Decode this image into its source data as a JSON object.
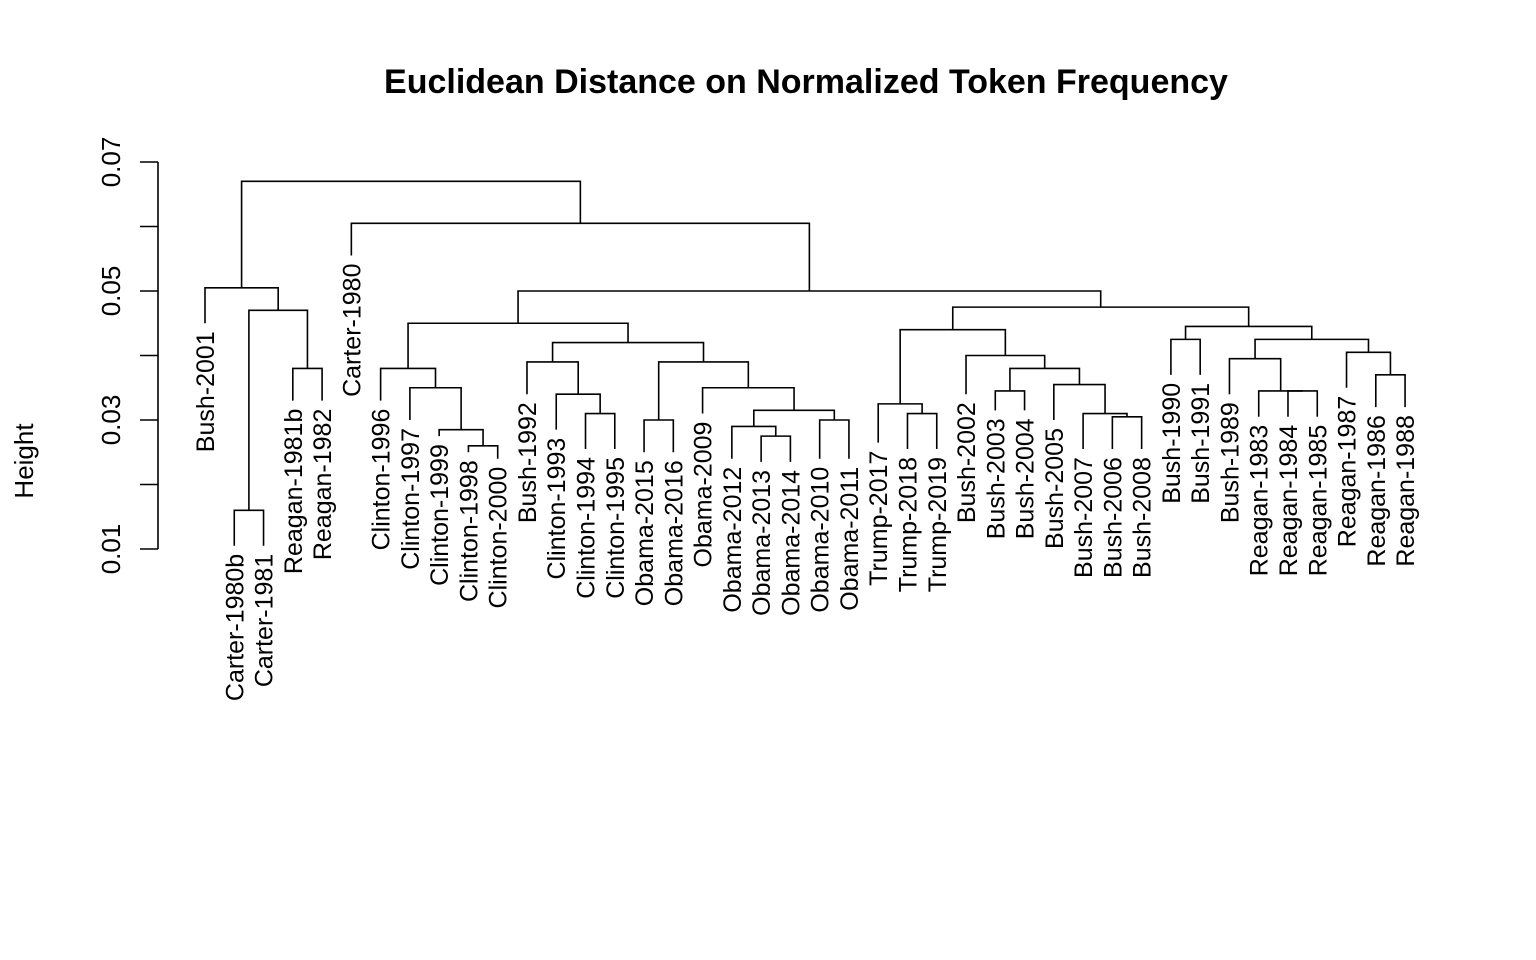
{
  "chart_data": {
    "type": "dendrogram",
    "title": "Euclidean Distance on Normalized Token Frequency",
    "xlabel": "",
    "ylabel": "Height",
    "ylim": [
      0.01,
      0.07
    ],
    "yticks": [
      0.01,
      0.03,
      0.05,
      0.07
    ],
    "ytick_labels": [
      "0.01",
      "0.03",
      "0.05",
      "0.07"
    ],
    "leaves": [
      "Bush-2001",
      "Carter-1980b",
      "Carter-1981",
      "Reagan-1981b",
      "Reagan-1982",
      "Carter-1980",
      "Clinton-1996",
      "Clinton-1997",
      "Clinton-1999",
      "Clinton-1998",
      "Clinton-2000",
      "Bush-1992",
      "Clinton-1993",
      "Clinton-1994",
      "Clinton-1995",
      "Obama-2015",
      "Obama-2016",
      "Obama-2009",
      "Obama-2012",
      "Obama-2013",
      "Obama-2014",
      "Obama-2010",
      "Obama-2011",
      "Trump-2017",
      "Trump-2018",
      "Trump-2019",
      "Bush-2002",
      "Bush-2003",
      "Bush-2004",
      "Bush-2005",
      "Bush-2007",
      "Bush-2006",
      "Bush-2008",
      "Bush-1990",
      "Bush-1991",
      "Bush-1989",
      "Reagan-1983",
      "Reagan-1984",
      "Reagan-1985",
      "Reagan-1987",
      "Reagan-1986",
      "Reagan-1988"
    ],
    "leaf_heights": [
      0.045,
      0.0105,
      0.0105,
      0.033,
      0.033,
      0.0555,
      0.033,
      0.03,
      0.0275,
      0.025,
      0.024,
      0.034,
      0.0285,
      0.0255,
      0.0255,
      0.025,
      0.025,
      0.031,
      0.024,
      0.0235,
      0.0235,
      0.024,
      0.024,
      0.0265,
      0.0255,
      0.0255,
      0.034,
      0.0315,
      0.0315,
      0.03,
      0.0255,
      0.0255,
      0.0255,
      0.037,
      0.037,
      0.034,
      0.0305,
      0.0305,
      0.0305,
      0.035,
      0.032,
      0.032
    ],
    "merges": [
      {
        "a": "L1",
        "b": "L2",
        "height": 0.016
      },
      {
        "a": "L3",
        "b": "L4",
        "height": 0.038
      },
      {
        "a": "M0",
        "b": "M1",
        "height": 0.047
      },
      {
        "a": "L0",
        "b": "M2",
        "height": 0.0505
      },
      {
        "a": "L9",
        "b": "L10",
        "height": 0.026
      },
      {
        "a": "L8",
        "b": "M4",
        "height": 0.0285
      },
      {
        "a": "L7",
        "b": "M5",
        "height": 0.035
      },
      {
        "a": "L6",
        "b": "M6",
        "height": 0.038
      },
      {
        "a": "L13",
        "b": "L14",
        "height": 0.031
      },
      {
        "a": "L12",
        "b": "M8",
        "height": 0.034
      },
      {
        "a": "L11",
        "b": "M9",
        "height": 0.039
      },
      {
        "a": "L15",
        "b": "L16",
        "height": 0.03
      },
      {
        "a": "L19",
        "b": "L20",
        "height": 0.0275
      },
      {
        "a": "L18",
        "b": "M12",
        "height": 0.029
      },
      {
        "a": "L21",
        "b": "L22",
        "height": 0.03
      },
      {
        "a": "M13",
        "b": "M14",
        "height": 0.0315
      },
      {
        "a": "L17",
        "b": "M15",
        "height": 0.035
      },
      {
        "a": "M11",
        "b": "M16",
        "height": 0.039
      },
      {
        "a": "M10",
        "b": "M17",
        "height": 0.042
      },
      {
        "a": "M7",
        "b": "M18",
        "height": 0.045
      },
      {
        "a": "L24",
        "b": "L25",
        "height": 0.031
      },
      {
        "a": "L23",
        "b": "M20",
        "height": 0.0325
      },
      {
        "a": "L27",
        "b": "L28",
        "height": 0.0345
      },
      {
        "a": "L31",
        "b": "L32",
        "height": 0.0305
      },
      {
        "a": "L30",
        "b": "M23",
        "height": 0.031
      },
      {
        "a": "L29",
        "b": "M24",
        "height": 0.0355
      },
      {
        "a": "M22",
        "b": "M25",
        "height": 0.038
      },
      {
        "a": "L26",
        "b": "M26",
        "height": 0.04
      },
      {
        "a": "M21",
        "b": "M27",
        "height": 0.044
      },
      {
        "a": "L33",
        "b": "L34",
        "height": 0.0425
      },
      {
        "a": "L37",
        "b": "L38",
        "height": 0.0345
      },
      {
        "a": "L36",
        "b": "M30",
        "height": 0.0345
      },
      {
        "a": "L35",
        "b": "M31",
        "height": 0.0395
      },
      {
        "a": "L40",
        "b": "L41",
        "height": 0.037
      },
      {
        "a": "L39",
        "b": "M33",
        "height": 0.0405
      },
      {
        "a": "M32",
        "b": "M34",
        "height": 0.0425
      },
      {
        "a": "M29",
        "b": "M35",
        "height": 0.0445
      },
      {
        "a": "M28",
        "b": "M36",
        "height": 0.0475
      },
      {
        "a": "M19",
        "b": "M37",
        "height": 0.05
      },
      {
        "a": "L5",
        "b": "M38",
        "height": 0.0605
      },
      {
        "a": "M3",
        "b": "M39",
        "height": 0.067
      }
    ]
  }
}
